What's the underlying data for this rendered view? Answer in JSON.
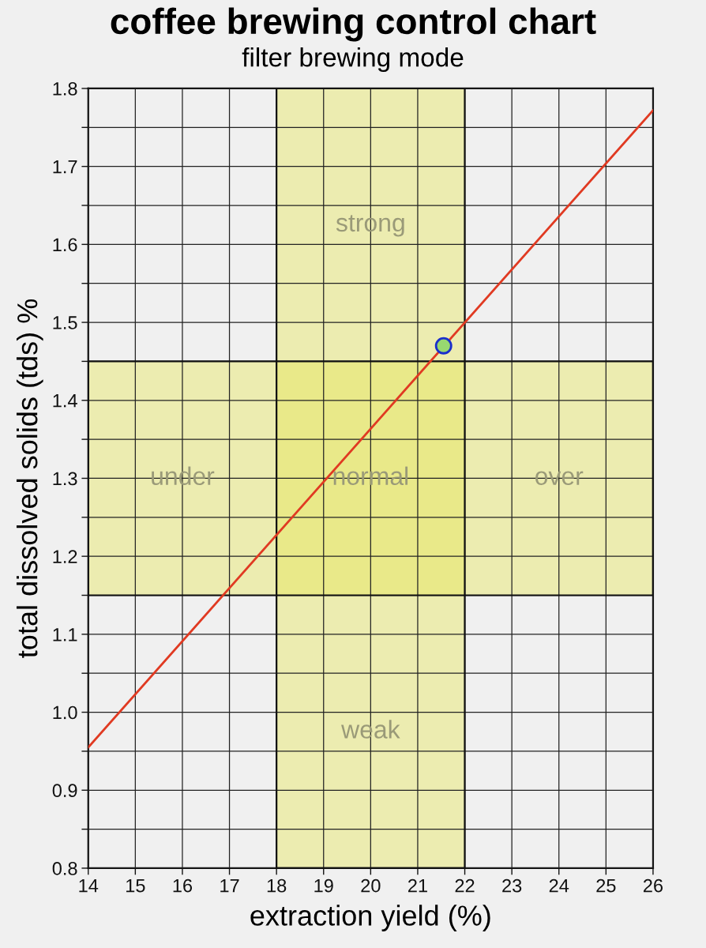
{
  "chart_data": {
    "type": "line",
    "title": "coffee brewing control chart",
    "subtitle": "filter brewing mode",
    "xlabel": "extraction yield (%)",
    "ylabel": "total dissolved solids (tds) %",
    "series": [
      {
        "x": [
          14,
          26
        ],
        "values": [
          0.955,
          1.772
        ],
        "color": "#e03a22",
        "marker": "none",
        "line_style": "solid"
      },
      {
        "type": "scatter",
        "x": [
          21.55
        ],
        "values": [
          1.47
        ],
        "color": "#98d870",
        "marker": "circle"
      }
    ],
    "bands": [
      {
        "axis": "x",
        "from": 18,
        "to": 22,
        "color": "#e6e650"
      },
      {
        "axis": "y",
        "from": 1.15,
        "to": 1.45,
        "color": "#e6e650"
      }
    ],
    "annotations": [
      "strong",
      "under",
      "normal",
      "over",
      "weak"
    ],
    "xlim": [
      14,
      26
    ],
    "ylim": [
      0.8,
      1.8
    ],
    "xticks": [
      14,
      15,
      16,
      17,
      18,
      19,
      20,
      21,
      22,
      23,
      24,
      25,
      26
    ],
    "yticks": [
      0.8,
      {
        "value": 0.85,
        "label": null
      },
      0.9,
      {
        "value": 0.95,
        "label": null
      },
      {
        "value": 1,
        "label": "1.0"
      },
      {
        "value": 1.05,
        "label": null
      },
      1.1,
      {
        "value": 1.15,
        "label": null
      },
      1.2,
      {
        "value": 1.25,
        "label": null
      },
      1.3,
      {
        "value": 1.35,
        "label": null
      },
      1.4,
      {
        "value": 1.45,
        "label": null
      },
      1.5,
      {
        "value": 1.55,
        "label": null
      },
      1.6,
      {
        "value": 1.65,
        "label": null
      },
      1.7,
      {
        "value": 1.75,
        "label": null
      },
      1.8
    ],
    "grid": true
  }
}
